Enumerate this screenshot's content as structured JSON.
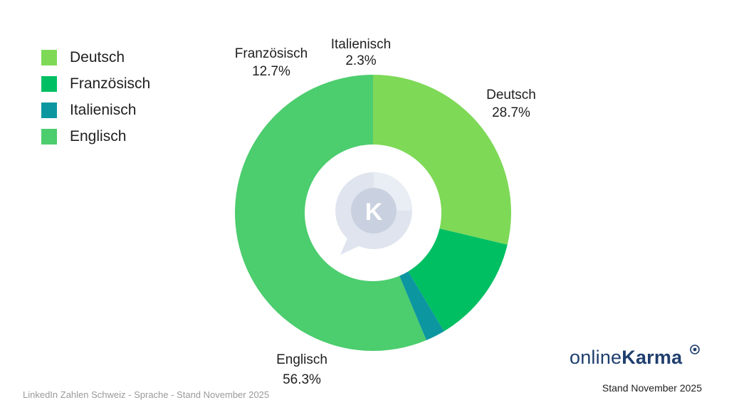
{
  "chart_data": {
    "type": "pie",
    "categories": [
      "Deutsch",
      "Französisch",
      "Italienisch",
      "Englisch"
    ],
    "values": [
      28.7,
      12.7,
      2.3,
      56.3
    ],
    "value_labels": [
      "28.7%",
      "12.7%",
      "2.3%",
      "56.3%"
    ],
    "colors": [
      "#7ed957",
      "#00bf63",
      "#0c97a0",
      "#4ccd6e"
    ],
    "donut": true,
    "legend_position": "top-left"
  },
  "footer": {
    "caption": "LinkedIn Zahlen Schweiz - Sprache - Stand November 2025",
    "date": "Stand November 2025"
  },
  "brand": {
    "part1": "online",
    "part2": "Karma"
  }
}
